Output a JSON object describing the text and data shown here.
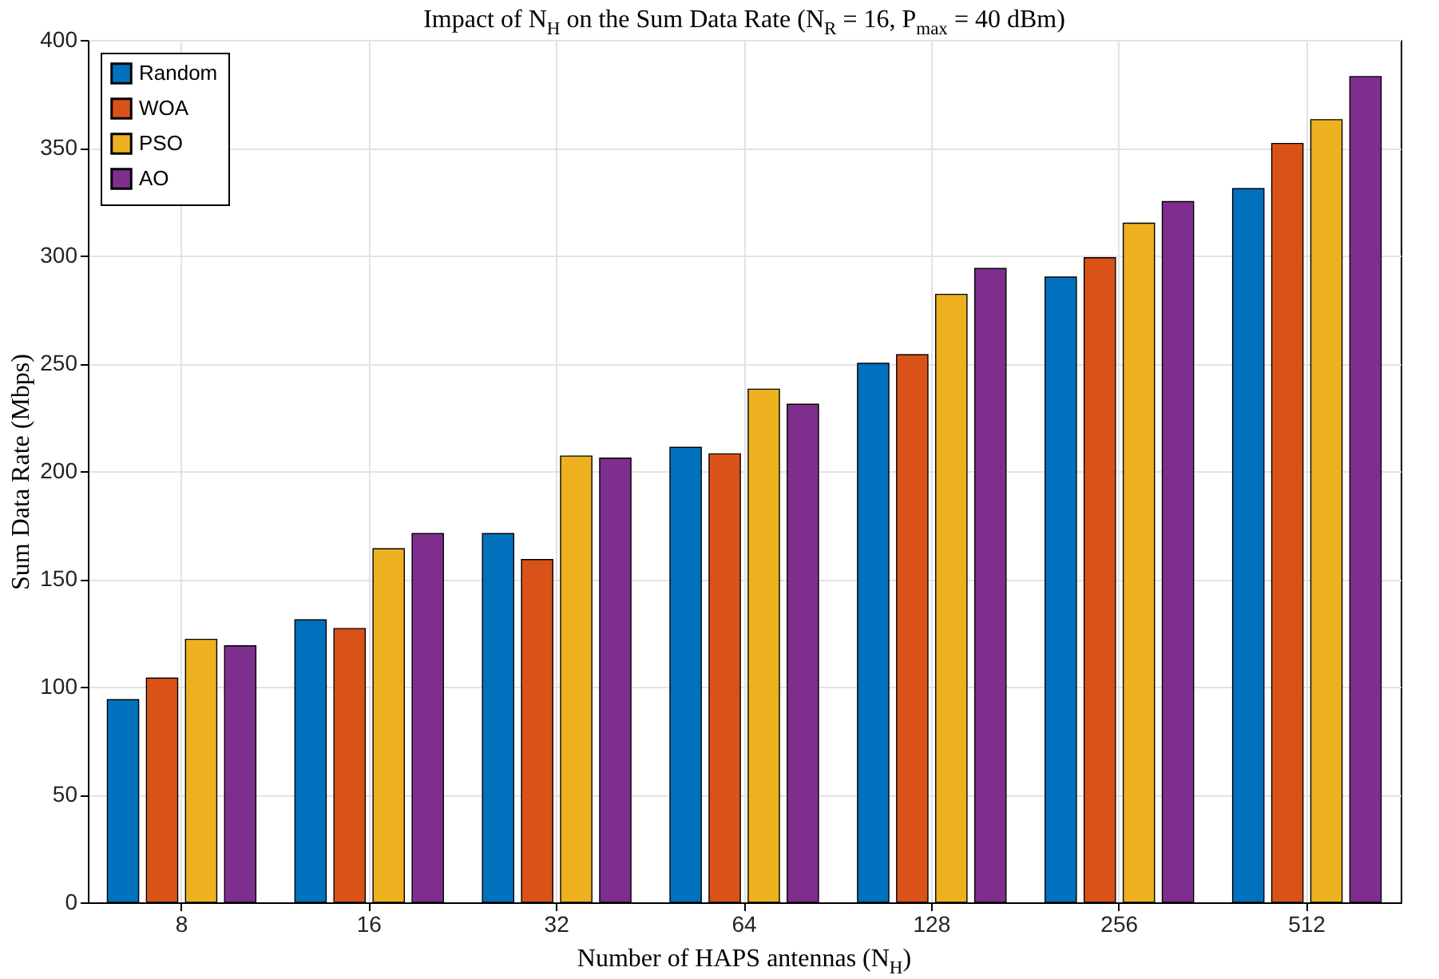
{
  "chart_data": {
    "type": "bar",
    "title": "Impact of N$_{H}$ on the Sum Data Rate (N$_{R}$ = 16, P$_{max}$ = 40 dBm)",
    "xlabel": "Number of HAPS antennas (N$_{H}$)",
    "ylabel": "Sum Data Rate (Mbps)",
    "categories": [
      "8",
      "16",
      "32",
      "64",
      "128",
      "256",
      "512"
    ],
    "series": [
      {
        "name": "Random",
        "color": "#0072bd",
        "values": [
          94,
          131,
          171,
          211,
          250,
          290,
          331
        ]
      },
      {
        "name": "WOA",
        "color": "#d95319",
        "values": [
          104,
          127,
          159,
          208,
          254,
          299,
          352
        ]
      },
      {
        "name": "PSO",
        "color": "#edb120",
        "values": [
          122,
          164,
          207,
          238,
          282,
          315,
          363
        ]
      },
      {
        "name": "AO",
        "color": "#7e2f8e",
        "values": [
          119,
          171,
          206,
          231,
          294,
          325,
          383
        ]
      }
    ],
    "ylim": [
      0,
      400
    ],
    "yticks": [
      0,
      50,
      100,
      150,
      200,
      250,
      300,
      350,
      400
    ],
    "grid": true,
    "legend": "top left"
  }
}
